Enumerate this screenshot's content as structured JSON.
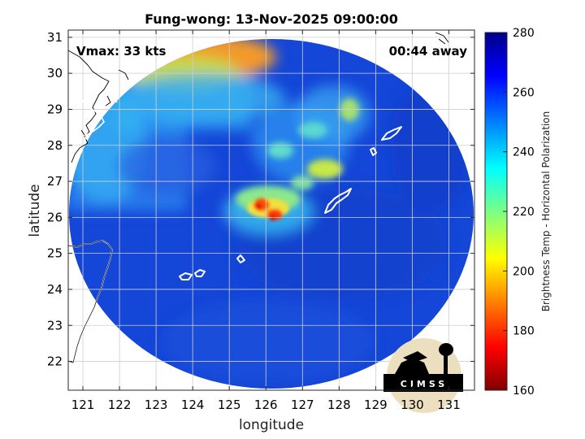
{
  "chart_data": {
    "type": "heatmap",
    "title": "Fung-wong: 13-Nov-2025 09:00:00",
    "xlabel": "longitude",
    "ylabel": "latitude",
    "xlim": [
      120.6,
      131.7
    ],
    "ylim": [
      21.2,
      31.2
    ],
    "xticks": [
      121,
      122,
      123,
      124,
      125,
      126,
      127,
      128,
      129,
      130,
      131
    ],
    "yticks": [
      22,
      23,
      24,
      25,
      26,
      27,
      28,
      29,
      30,
      31
    ],
    "grid": true,
    "annotations": {
      "vmax": "Vmax: 33 kts",
      "time_away": "00:44 away"
    },
    "colorbar": {
      "label": "Brightness Temp - Horizontal Polarization",
      "range": [
        160,
        280
      ],
      "ticks": [
        160,
        180,
        200,
        220,
        240,
        260,
        280
      ],
      "colormap": "jet"
    },
    "swath": {
      "shape": "circle",
      "center": [
        126.2,
        26.1
      ],
      "radius_deg": 5.5
    },
    "features": [
      {
        "name": "convective core",
        "lon": 126.0,
        "lat": 26.2,
        "temp": 180
      },
      {
        "name": "convective core",
        "lon": 126.4,
        "lat": 26.0,
        "temp": 182
      },
      {
        "name": "rainband",
        "lon": 127.6,
        "lat": 27.3,
        "temp": 222
      },
      {
        "name": "rainband",
        "lon": 128.3,
        "lat": 29.0,
        "temp": 226
      },
      {
        "name": "rainband",
        "lon": 127.2,
        "lat": 28.1,
        "temp": 232
      },
      {
        "name": "cold sector",
        "lon": 125.0,
        "lat": 30.6,
        "temp": 200
      }
    ]
  },
  "logo": {
    "text": "CIMSS"
  }
}
